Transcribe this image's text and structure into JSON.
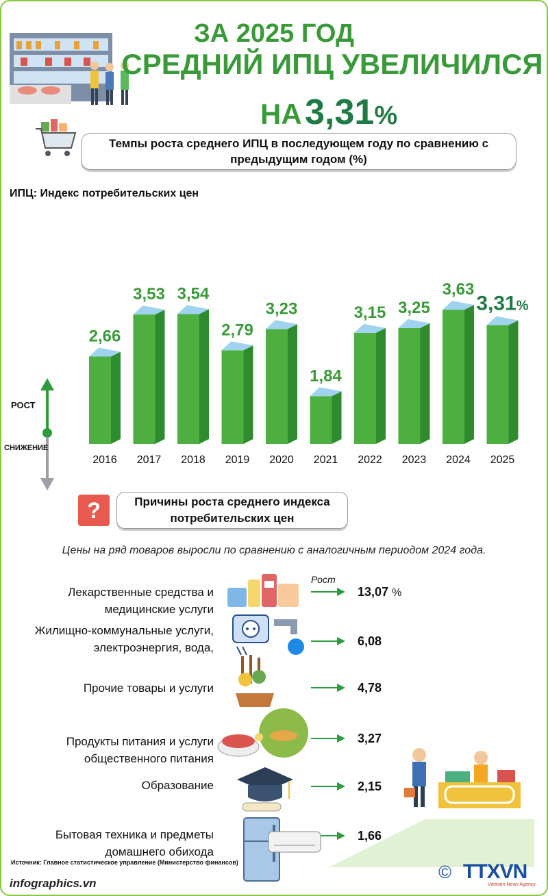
{
  "header": {
    "line1": "ЗА 2025 ГОД",
    "line2": "СРЕДНИЙ ИПЦ УВЕЛИЧИЛСЯ",
    "line3_prefix": "НА",
    "line3_value": "3,31",
    "line3_unit": "%"
  },
  "subtitle": "Темпы роста среднего ИПЦ в последующем году по сравнению с предыдущим годом (%)",
  "cpi_definition": "ИПЦ: Индекс потребительских цен",
  "axis_legend": {
    "up": "РОСТ",
    "down": "СНИЖЕНИЕ"
  },
  "chart_data": {
    "type": "bar",
    "title": "Темпы роста среднего ИПЦ в последующем году по сравнению с предыдущим годом (%)",
    "categories": [
      "2016",
      "2017",
      "2018",
      "2019",
      "2020",
      "2021",
      "2022",
      "2023",
      "2024",
      "2025"
    ],
    "values": [
      2.66,
      3.53,
      3.54,
      2.79,
      3.23,
      1.84,
      3.15,
      3.25,
      3.63,
      3.31
    ],
    "labels": [
      "2,66",
      "3,53",
      "3,54",
      "2,79",
      "3,23",
      "1,84",
      "3,15",
      "3,25",
      "3,63",
      "3,31"
    ],
    "highlight_unit": "%",
    "colors": {
      "bar_front": "#4caf3f",
      "bar_side": "#2e8b2e",
      "bar_top": "#9fd3f0",
      "label": "#3a9a3a",
      "highlight": "#1f7a45"
    }
  },
  "reasons": {
    "title": "Причины роста среднего индекса потребительских цен",
    "icon": "question-icon",
    "note": "Цены на ряд товаров выросли по сравнению с аналогичным периодом 2024 года.",
    "growth_label": "Рост",
    "items": [
      {
        "label": "Лекарственные средства и медицинские услуги",
        "value": "13,07",
        "unit": "%",
        "icon": "medicine-icon"
      },
      {
        "label": "Жилищно-коммунальные услуги, электроэнергия, вода,",
        "value": "6,08",
        "icon": "utilities-icon"
      },
      {
        "label": "Прочие товары и услуги",
        "value": "4,78",
        "icon": "garden-goods-icon"
      },
      {
        "label": "Продукты питания и услуги общественного питания",
        "value": "3,27",
        "icon": "food-icon"
      },
      {
        "label": "Образование",
        "value": "2,15",
        "icon": "graduation-cap-icon"
      },
      {
        "label": "Бытовая техника и предметы домашнего обихода",
        "value": "1,66",
        "icon": "appliance-icon"
      }
    ]
  },
  "source": "Источник: Главное статистическое управление (Министерство финансов)",
  "footer": "infographics.vn",
  "agency": {
    "name": "TTXVN",
    "sub": "Vietnam News Agency",
    "copyright": "©"
  }
}
